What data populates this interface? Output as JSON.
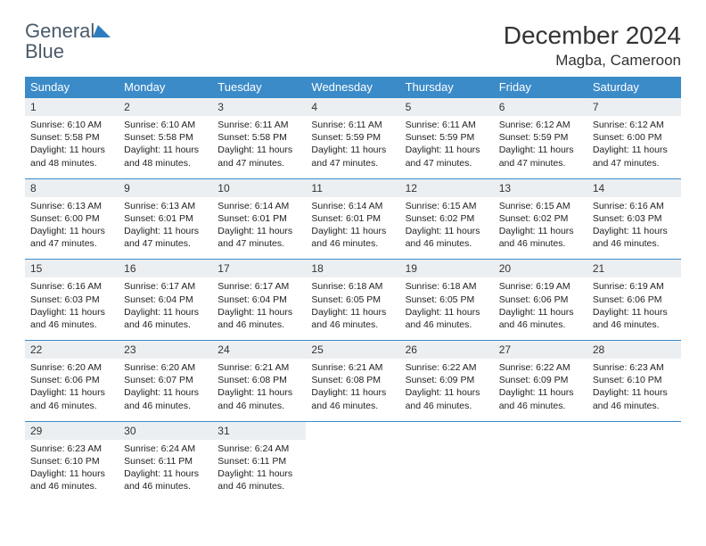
{
  "logo": {
    "text_general": "General",
    "text_blue": "Blue",
    "arrow_color": "#2e7cc0"
  },
  "header": {
    "month_title": "December 2024",
    "location": "Magba, Cameroon"
  },
  "colors": {
    "header_bg": "#3b8bc9",
    "header_text": "#ffffff",
    "daynum_bg": "#eceff1",
    "border": "#3b8bc9",
    "page_bg": "#ffffff",
    "text": "#222222",
    "logo_gray": "#4a5a6a",
    "logo_blue": "#2e7cc0"
  },
  "typography": {
    "month_title_fontsize": 28,
    "location_fontsize": 17,
    "dow_fontsize": 13,
    "daynum_fontsize": 12,
    "body_fontsize": 10.5,
    "font_family": "Arial"
  },
  "day_headers": [
    "Sunday",
    "Monday",
    "Tuesday",
    "Wednesday",
    "Thursday",
    "Friday",
    "Saturday"
  ],
  "weeks": [
    [
      {
        "num": "1",
        "sunrise": "Sunrise: 6:10 AM",
        "sunset": "Sunset: 5:58 PM",
        "daylight": "Daylight: 11 hours and 48 minutes."
      },
      {
        "num": "2",
        "sunrise": "Sunrise: 6:10 AM",
        "sunset": "Sunset: 5:58 PM",
        "daylight": "Daylight: 11 hours and 48 minutes."
      },
      {
        "num": "3",
        "sunrise": "Sunrise: 6:11 AM",
        "sunset": "Sunset: 5:58 PM",
        "daylight": "Daylight: 11 hours and 47 minutes."
      },
      {
        "num": "4",
        "sunrise": "Sunrise: 6:11 AM",
        "sunset": "Sunset: 5:59 PM",
        "daylight": "Daylight: 11 hours and 47 minutes."
      },
      {
        "num": "5",
        "sunrise": "Sunrise: 6:11 AM",
        "sunset": "Sunset: 5:59 PM",
        "daylight": "Daylight: 11 hours and 47 minutes."
      },
      {
        "num": "6",
        "sunrise": "Sunrise: 6:12 AM",
        "sunset": "Sunset: 5:59 PM",
        "daylight": "Daylight: 11 hours and 47 minutes."
      },
      {
        "num": "7",
        "sunrise": "Sunrise: 6:12 AM",
        "sunset": "Sunset: 6:00 PM",
        "daylight": "Daylight: 11 hours and 47 minutes."
      }
    ],
    [
      {
        "num": "8",
        "sunrise": "Sunrise: 6:13 AM",
        "sunset": "Sunset: 6:00 PM",
        "daylight": "Daylight: 11 hours and 47 minutes."
      },
      {
        "num": "9",
        "sunrise": "Sunrise: 6:13 AM",
        "sunset": "Sunset: 6:01 PM",
        "daylight": "Daylight: 11 hours and 47 minutes."
      },
      {
        "num": "10",
        "sunrise": "Sunrise: 6:14 AM",
        "sunset": "Sunset: 6:01 PM",
        "daylight": "Daylight: 11 hours and 47 minutes."
      },
      {
        "num": "11",
        "sunrise": "Sunrise: 6:14 AM",
        "sunset": "Sunset: 6:01 PM",
        "daylight": "Daylight: 11 hours and 46 minutes."
      },
      {
        "num": "12",
        "sunrise": "Sunrise: 6:15 AM",
        "sunset": "Sunset: 6:02 PM",
        "daylight": "Daylight: 11 hours and 46 minutes."
      },
      {
        "num": "13",
        "sunrise": "Sunrise: 6:15 AM",
        "sunset": "Sunset: 6:02 PM",
        "daylight": "Daylight: 11 hours and 46 minutes."
      },
      {
        "num": "14",
        "sunrise": "Sunrise: 6:16 AM",
        "sunset": "Sunset: 6:03 PM",
        "daylight": "Daylight: 11 hours and 46 minutes."
      }
    ],
    [
      {
        "num": "15",
        "sunrise": "Sunrise: 6:16 AM",
        "sunset": "Sunset: 6:03 PM",
        "daylight": "Daylight: 11 hours and 46 minutes."
      },
      {
        "num": "16",
        "sunrise": "Sunrise: 6:17 AM",
        "sunset": "Sunset: 6:04 PM",
        "daylight": "Daylight: 11 hours and 46 minutes."
      },
      {
        "num": "17",
        "sunrise": "Sunrise: 6:17 AM",
        "sunset": "Sunset: 6:04 PM",
        "daylight": "Daylight: 11 hours and 46 minutes."
      },
      {
        "num": "18",
        "sunrise": "Sunrise: 6:18 AM",
        "sunset": "Sunset: 6:05 PM",
        "daylight": "Daylight: 11 hours and 46 minutes."
      },
      {
        "num": "19",
        "sunrise": "Sunrise: 6:18 AM",
        "sunset": "Sunset: 6:05 PM",
        "daylight": "Daylight: 11 hours and 46 minutes."
      },
      {
        "num": "20",
        "sunrise": "Sunrise: 6:19 AM",
        "sunset": "Sunset: 6:06 PM",
        "daylight": "Daylight: 11 hours and 46 minutes."
      },
      {
        "num": "21",
        "sunrise": "Sunrise: 6:19 AM",
        "sunset": "Sunset: 6:06 PM",
        "daylight": "Daylight: 11 hours and 46 minutes."
      }
    ],
    [
      {
        "num": "22",
        "sunrise": "Sunrise: 6:20 AM",
        "sunset": "Sunset: 6:06 PM",
        "daylight": "Daylight: 11 hours and 46 minutes."
      },
      {
        "num": "23",
        "sunrise": "Sunrise: 6:20 AM",
        "sunset": "Sunset: 6:07 PM",
        "daylight": "Daylight: 11 hours and 46 minutes."
      },
      {
        "num": "24",
        "sunrise": "Sunrise: 6:21 AM",
        "sunset": "Sunset: 6:08 PM",
        "daylight": "Daylight: 11 hours and 46 minutes."
      },
      {
        "num": "25",
        "sunrise": "Sunrise: 6:21 AM",
        "sunset": "Sunset: 6:08 PM",
        "daylight": "Daylight: 11 hours and 46 minutes."
      },
      {
        "num": "26",
        "sunrise": "Sunrise: 6:22 AM",
        "sunset": "Sunset: 6:09 PM",
        "daylight": "Daylight: 11 hours and 46 minutes."
      },
      {
        "num": "27",
        "sunrise": "Sunrise: 6:22 AM",
        "sunset": "Sunset: 6:09 PM",
        "daylight": "Daylight: 11 hours and 46 minutes."
      },
      {
        "num": "28",
        "sunrise": "Sunrise: 6:23 AM",
        "sunset": "Sunset: 6:10 PM",
        "daylight": "Daylight: 11 hours and 46 minutes."
      }
    ],
    [
      {
        "num": "29",
        "sunrise": "Sunrise: 6:23 AM",
        "sunset": "Sunset: 6:10 PM",
        "daylight": "Daylight: 11 hours and 46 minutes."
      },
      {
        "num": "30",
        "sunrise": "Sunrise: 6:24 AM",
        "sunset": "Sunset: 6:11 PM",
        "daylight": "Daylight: 11 hours and 46 minutes."
      },
      {
        "num": "31",
        "sunrise": "Sunrise: 6:24 AM",
        "sunset": "Sunset: 6:11 PM",
        "daylight": "Daylight: 11 hours and 46 minutes."
      },
      null,
      null,
      null,
      null
    ]
  ]
}
